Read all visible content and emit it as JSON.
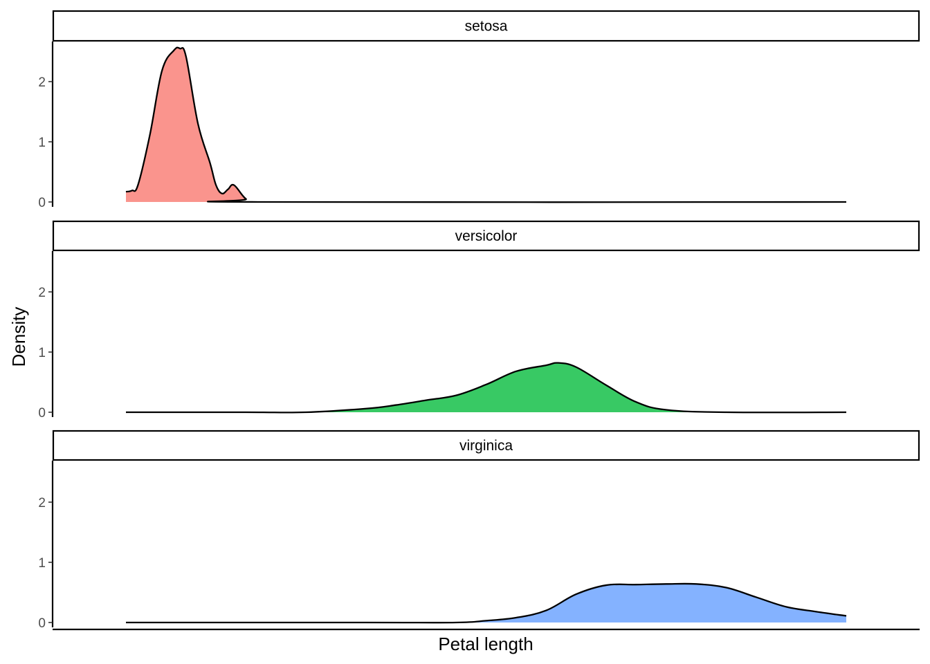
{
  "chart_data": {
    "type": "area",
    "title": "",
    "xlabel": "Petal length",
    "ylabel": "Density",
    "ylim": [
      0,
      2.65
    ],
    "y_ticks": [
      0,
      1,
      2
    ],
    "x_ticks_shown": false,
    "grid": false,
    "legend": "none",
    "facets": [
      {
        "name": "setosa",
        "color": "#F8766D",
        "x": [
          1.0,
          1.05,
          1.1,
          1.2,
          1.3,
          1.4,
          1.45,
          1.5,
          1.6,
          1.7,
          1.75,
          1.8,
          1.85,
          1.9,
          2.0,
          2.1,
          7.0
        ],
        "y": [
          0.17,
          0.19,
          0.28,
          1.12,
          2.18,
          2.52,
          2.55,
          2.42,
          1.3,
          0.65,
          0.28,
          0.14,
          0.21,
          0.28,
          0.05,
          0.0,
          0.0
        ]
      },
      {
        "name": "versicolor",
        "color": "#00BA38",
        "x": [
          1.0,
          2.0,
          2.5,
          3.0,
          3.25,
          3.5,
          3.75,
          4.0,
          4.25,
          4.5,
          4.6,
          4.75,
          5.0,
          5.25,
          5.5,
          6.0,
          7.0
        ],
        "y": [
          0.0,
          0.0,
          0.0,
          0.06,
          0.12,
          0.2,
          0.28,
          0.46,
          0.68,
          0.78,
          0.82,
          0.75,
          0.45,
          0.17,
          0.04,
          0.0,
          0.0
        ]
      },
      {
        "name": "virginica",
        "color": "#619CFF",
        "x": [
          1.0,
          3.0,
          3.75,
          4.0,
          4.25,
          4.5,
          4.75,
          5.0,
          5.25,
          5.5,
          5.75,
          6.0,
          6.25,
          6.5,
          6.75,
          7.0
        ],
        "y": [
          0.0,
          0.0,
          0.0,
          0.03,
          0.08,
          0.2,
          0.47,
          0.62,
          0.63,
          0.64,
          0.64,
          0.58,
          0.42,
          0.26,
          0.18,
          0.11
        ]
      }
    ]
  }
}
